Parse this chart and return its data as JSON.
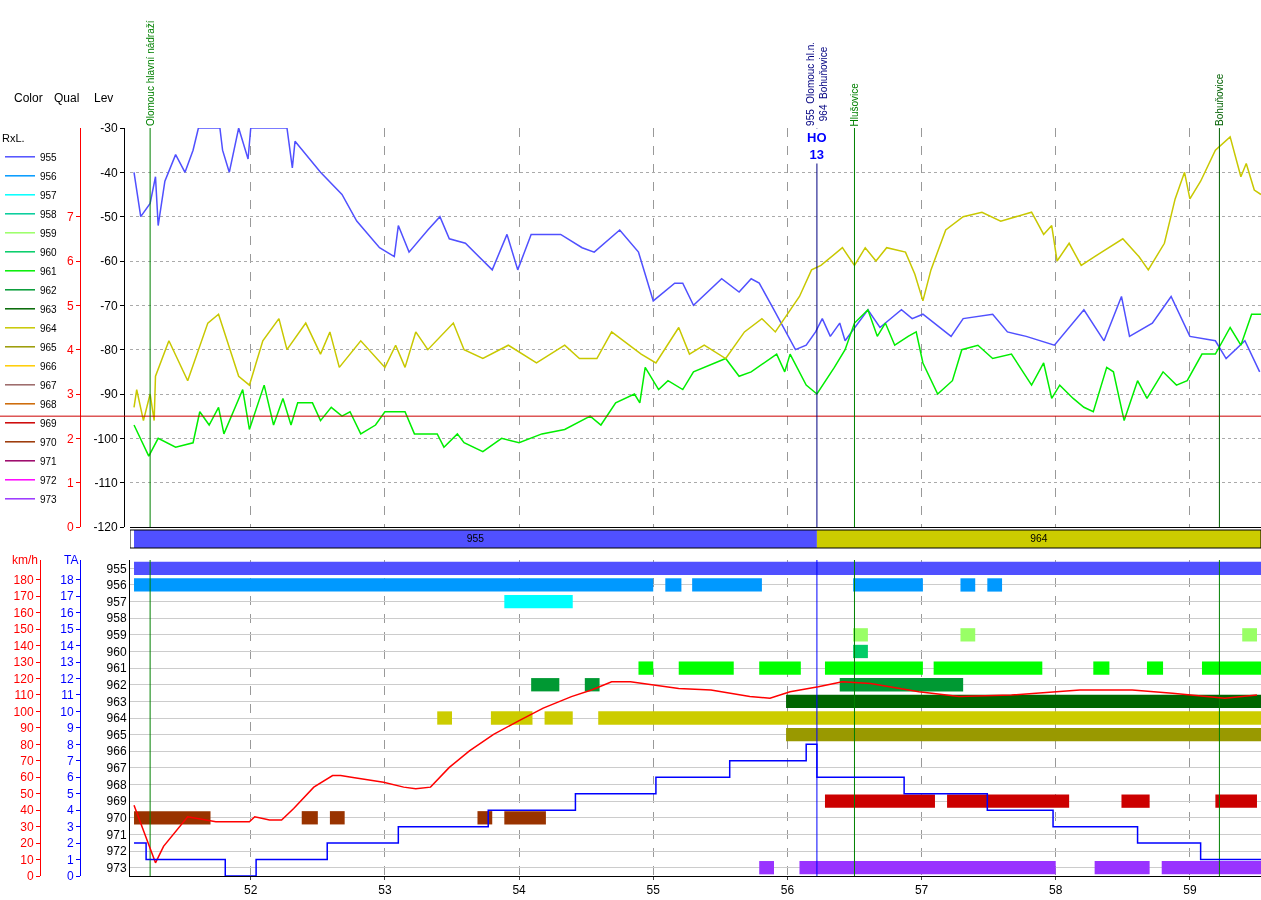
{
  "chart_data": [
    {
      "type": "line",
      "xlim": [
        51.1,
        59.53
      ],
      "xticks": [
        52,
        53,
        54,
        55,
        56,
        57,
        58,
        59
      ],
      "ylim": [
        -120,
        -30
      ],
      "yticks": [
        -120,
        -110,
        -100,
        -90,
        -80,
        -70,
        -60,
        -50,
        -40,
        -30
      ],
      "y2lim": [
        0,
        9
      ],
      "y2ticks": [
        0,
        1,
        2,
        3,
        4,
        5,
        6,
        7
      ],
      "tick_labels": "y",
      "grid": true,
      "legend": "left",
      "legend_title": "RxL.",
      "annotations": [
        "Color",
        "Qual",
        "Lev",
        {
          "text": "HO\n13",
          "x": 56.22,
          "y": -30
        }
      ],
      "ref_lines": [
        {
          "axis": "y",
          "value": -95,
          "color": "#cc0000"
        },
        {
          "axis": "x",
          "value": 51.25,
          "label": "Olomouc hlavní nádraží",
          "color": "#008000"
        },
        {
          "axis": "x",
          "value": 56.22,
          "label": "955  Olomouc hl.n.\n964  Bohuňovice",
          "color": "#000080"
        },
        {
          "axis": "x",
          "value": 56.5,
          "label": "Hlušovice",
          "color": "#008000"
        },
        {
          "axis": "x",
          "value": 59.22,
          "label": "Bohuňovice",
          "color": "#006000"
        }
      ],
      "series": [
        {
          "name": "955",
          "color": "#5050ff",
          "x": [
            51.13,
            51.18,
            51.25,
            51.29,
            51.31,
            51.36,
            51.44,
            51.51,
            51.57,
            51.61,
            51.77,
            51.79,
            51.84,
            51.91,
            51.98,
            52.0,
            52.27,
            52.31,
            52.33,
            52.52,
            52.68,
            52.79,
            52.96,
            53.07,
            53.1,
            53.18,
            53.32,
            53.41,
            53.48,
            53.6,
            53.8,
            53.91,
            53.99,
            54.09,
            54.31,
            54.47,
            54.56,
            54.75,
            54.89,
            54.94,
            55.0,
            55.16,
            55.22,
            55.3,
            55.51,
            55.64,
            55.73,
            55.79,
            55.9,
            56.06,
            56.14,
            56.21,
            56.26,
            56.32,
            56.39,
            56.43,
            56.6,
            56.69,
            56.85,
            56.93,
            57.01,
            57.22,
            57.31,
            57.53,
            57.64,
            57.78,
            57.99,
            58.21,
            58.36,
            58.49,
            58.55,
            58.72,
            58.86,
            59.0,
            59.19,
            59.27,
            59.41,
            59.52
          ],
          "values": [
            -40,
            -50,
            -47,
            -41,
            -52,
            -42,
            -36,
            -40,
            -35,
            -30,
            -30,
            -35,
            -40,
            -30,
            -37,
            -30,
            -30,
            -39,
            -33,
            -40,
            -45,
            -51,
            -57,
            -59,
            -52,
            -58,
            -53,
            -50,
            -55,
            -56,
            -62,
            -54,
            -62,
            -54,
            -54,
            -57,
            -58,
            -53,
            -58,
            -63,
            -69,
            -65,
            -65,
            -70,
            -64,
            -67,
            -64,
            -65,
            -71,
            -80,
            -79,
            -76,
            -73,
            -77,
            -74,
            -78,
            -71,
            -75,
            -71,
            -73,
            -72,
            -77,
            -73,
            -72,
            -76,
            -77,
            -79,
            -71,
            -78,
            -68,
            -77,
            -74,
            -68,
            -77,
            -78,
            -82,
            -78,
            -85
          ]
        },
        {
          "name": "956",
          "color": "#0099ff"
        },
        {
          "name": "957",
          "color": "#00ffff"
        },
        {
          "name": "958",
          "color": "#00cc99"
        },
        {
          "name": "959",
          "color": "#99ff66"
        },
        {
          "name": "960",
          "color": "#00cc66"
        },
        {
          "name": "961",
          "color": "#00ee00",
          "x": [
            51.13,
            51.24,
            51.31,
            51.44,
            51.57,
            51.62,
            51.69,
            51.76,
            51.8,
            51.94,
            51.99,
            52.1,
            52.17,
            52.24,
            52.3,
            52.35,
            52.46,
            52.52,
            52.6,
            52.68,
            52.74,
            52.82,
            52.93,
            53.0,
            53.15,
            53.22,
            53.39,
            53.44,
            53.54,
            53.59,
            53.73,
            53.87,
            54.0,
            54.17,
            54.34,
            54.53,
            54.61,
            54.72,
            54.86,
            54.9,
            54.94,
            55.04,
            55.11,
            55.22,
            55.3,
            55.54,
            55.64,
            55.73,
            55.92,
            55.98,
            56.02,
            56.14,
            56.22,
            56.35,
            56.43,
            56.5,
            56.6,
            56.67,
            56.73,
            56.8,
            56.9,
            56.96,
            57.01,
            57.12,
            57.23,
            57.3,
            57.42,
            57.53,
            57.67,
            57.82,
            57.91,
            57.97,
            58.03,
            58.13,
            58.21,
            58.28,
            58.38,
            58.43,
            58.51,
            58.61,
            58.68,
            58.8,
            58.9,
            58.98,
            59.09,
            59.19,
            59.3,
            59.38,
            59.46,
            59.53
          ],
          "values": [
            -97,
            -104,
            -100,
            -102,
            -101,
            -94,
            -97,
            -93,
            -99,
            -89,
            -98,
            -88,
            -97,
            -91,
            -97,
            -92,
            -92,
            -96,
            -93,
            -95,
            -94,
            -99,
            -97,
            -94,
            -94,
            -99,
            -99,
            -102,
            -99,
            -101,
            -103,
            -100,
            -101,
            -99,
            -98,
            -95,
            -97,
            -92,
            -90,
            -92,
            -84,
            -89,
            -87,
            -89,
            -85,
            -82,
            -86,
            -85,
            -81,
            -85,
            -81,
            -88,
            -90,
            -84,
            -80,
            -74,
            -71,
            -77,
            -74,
            -79,
            -77,
            -76,
            -83,
            -90,
            -87,
            -80,
            -79,
            -82,
            -81,
            -88,
            -83,
            -91,
            -88,
            -91,
            -93,
            -94,
            -84,
            -85,
            -96,
            -87,
            -91,
            -85,
            -88,
            -87,
            -81,
            -81,
            -75,
            -79,
            -72,
            -72
          ]
        },
        {
          "name": "962",
          "color": "#009933"
        },
        {
          "name": "963",
          "color": "#006600"
        },
        {
          "name": "964",
          "color": "#c8c800",
          "x": [
            51.13,
            51.15,
            51.2,
            51.25,
            51.28,
            51.29,
            51.39,
            51.53,
            51.68,
            51.76,
            51.91,
            51.99,
            52.09,
            52.21,
            52.27,
            52.41,
            52.52,
            52.59,
            52.66,
            52.82,
            53.0,
            53.08,
            53.15,
            53.23,
            53.32,
            53.51,
            53.59,
            53.73,
            53.92,
            54.13,
            54.34,
            54.45,
            54.58,
            54.69,
            54.91,
            55.02,
            55.19,
            55.27,
            55.38,
            55.54,
            55.68,
            55.81,
            55.91,
            56.09,
            56.18,
            56.25,
            56.41,
            56.5,
            56.58,
            56.66,
            56.74,
            56.88,
            56.95,
            57.01,
            57.07,
            57.18,
            57.31,
            57.45,
            57.59,
            57.82,
            57.91,
            57.97,
            58.01,
            58.1,
            58.19,
            58.29,
            58.5,
            58.62,
            58.69,
            58.81,
            58.89,
            58.96,
            59.0,
            59.08,
            59.19,
            59.3,
            59.38,
            59.42,
            59.48,
            59.53
          ],
          "values": [
            -93,
            -89,
            -96,
            -90,
            -96,
            -86,
            -78,
            -87,
            -74,
            -72,
            -86,
            -88,
            -78,
            -73,
            -80,
            -74,
            -81,
            -76,
            -84,
            -78,
            -84,
            -79,
            -84,
            -76,
            -80,
            -74,
            -80,
            -82,
            -79,
            -83,
            -79,
            -82,
            -82,
            -76,
            -81,
            -83,
            -75,
            -81,
            -79,
            -82,
            -76,
            -73,
            -76,
            -68,
            -62,
            -61,
            -57,
            -61,
            -57,
            -60,
            -57,
            -58,
            -63,
            -69,
            -62,
            -53,
            -50,
            -49,
            -51,
            -49,
            -54,
            -52,
            -60,
            -56,
            -61,
            -59,
            -55,
            -59,
            -62,
            -56,
            -46,
            -40,
            -46,
            -42,
            -35,
            -32,
            -41,
            -38,
            -44,
            -45
          ]
        },
        {
          "name": "965",
          "color": "#999900"
        },
        {
          "name": "966",
          "color": "#ffcc00"
        },
        {
          "name": "967",
          "color": "#996666"
        },
        {
          "name": "968",
          "color": "#cc6600"
        },
        {
          "name": "969",
          "color": "#cc0000"
        },
        {
          "name": "970",
          "color": "#993300"
        },
        {
          "name": "971",
          "color": "#990066"
        },
        {
          "name": "972",
          "color": "#ff00ff"
        },
        {
          "name": "973",
          "color": "#9933ff"
        }
      ]
    },
    {
      "type": "bar",
      "orientation": "horizontal",
      "categories": [
        null
      ],
      "xlim": [
        51.1,
        59.53
      ],
      "tick_labels": false,
      "series": [
        {
          "name": "955",
          "color": "#5050ff",
          "base": [
            51.13
          ],
          "values": [
            5.09
          ]
        },
        {
          "name": "964",
          "color": "#cccc00",
          "base": [
            56.22
          ],
          "values": [
            3.31
          ]
        }
      ]
    },
    {
      "type": "bar",
      "orientation": "horizontal",
      "categories": [
        "955",
        "956",
        "957",
        "958",
        "959",
        "960",
        "961",
        "962",
        "963",
        "964",
        "965",
        "966",
        "967",
        "968",
        "969",
        "970",
        "971",
        "972",
        "973"
      ],
      "xlim": [
        51.1,
        59.53
      ],
      "xticks": [
        52,
        53,
        54,
        55,
        56,
        57,
        58,
        59
      ],
      "grid": true,
      "ref_lines": [
        {
          "axis": "x",
          "value": 51.25,
          "color": "#008000"
        },
        {
          "axis": "x",
          "value": 56.22,
          "color": "#0000ff"
        },
        {
          "axis": "x",
          "value": 56.5,
          "color": "#008000"
        },
        {
          "axis": "x",
          "value": 59.22,
          "color": "#008000"
        }
      ],
      "series": [
        {
          "base": [
            51.13,
            51.13,
            53.89,
            null,
            56.49,
            56.49,
            54.89,
            54.09,
            55.99,
            53.39,
            55.99,
            null,
            null,
            null,
            56.28,
            51.13,
            null,
            null,
            55.79
          ],
          "values": [
            8.4,
            3.87,
            0.51,
            null,
            0.11,
            0.11,
            0.11,
            0.21,
            3.54,
            0.11,
            3.54,
            null,
            null,
            null,
            0.82,
            0.57,
            null,
            null,
            0.11
          ],
          "colors": [
            "#5050ff",
            "#0099ff",
            "#00ffff",
            null,
            "#99ff66",
            "#00cc66",
            "#00ff00",
            "#009933",
            "#006600",
            "#cccc00",
            "#999900",
            null,
            null,
            null,
            "#cc0000",
            "#993300",
            null,
            null,
            "#9933ff"
          ]
        },
        {
          "base": [
            null,
            55.09,
            null,
            null,
            57.29,
            null,
            55.19,
            54.49,
            null,
            53.79,
            null,
            null,
            null,
            null,
            57.19,
            52.38,
            null,
            null,
            56.09
          ],
          "values": [
            null,
            0.12,
            null,
            null,
            0.11,
            null,
            0.41,
            0.11,
            null,
            0.31,
            null,
            null,
            null,
            null,
            0.91,
            0.12,
            null,
            null,
            1.91
          ],
          "colors": [
            null,
            "#0099ff",
            null,
            null,
            "#99ff66",
            null,
            "#00ff00",
            "#009933",
            null,
            "#cccc00",
            null,
            null,
            null,
            null,
            "#cc0000",
            "#993300",
            null,
            null,
            "#9933ff"
          ]
        },
        {
          "base": [
            null,
            55.29,
            null,
            null,
            59.39,
            null,
            55.79,
            56.39,
            null,
            54.19,
            null,
            null,
            null,
            null,
            58.49,
            52.59,
            null,
            null,
            58.29
          ],
          "values": [
            null,
            0.52,
            null,
            null,
            0.11,
            null,
            0.31,
            0.92,
            null,
            0.21,
            null,
            null,
            null,
            null,
            0.21,
            0.11,
            null,
            null,
            0.41
          ],
          "colors": [
            null,
            "#0099ff",
            null,
            null,
            "#99ff66",
            null,
            "#00ff00",
            "#009933",
            null,
            "#cccc00",
            null,
            null,
            null,
            null,
            "#cc0000",
            "#993300",
            null,
            null,
            "#9933ff"
          ]
        },
        {
          "base": [
            null,
            56.49,
            null,
            null,
            null,
            null,
            56.28,
            null,
            null,
            54.59,
            null,
            null,
            null,
            null,
            59.19,
            53.69,
            null,
            null,
            58.79
          ],
          "values": [
            null,
            0.52,
            null,
            null,
            null,
            null,
            0.73,
            null,
            null,
            4.94,
            null,
            null,
            null,
            null,
            0.31,
            0.11,
            null,
            null,
            0.74
          ],
          "colors": [
            null,
            "#0099ff",
            null,
            null,
            null,
            null,
            "#00ff00",
            null,
            null,
            "#cccc00",
            null,
            null,
            null,
            null,
            "#cc0000",
            "#993300",
            null,
            null,
            "#9933ff"
          ]
        },
        {
          "base": [
            null,
            57.29,
            null,
            null,
            null,
            null,
            57.09,
            null,
            null,
            null,
            null,
            null,
            null,
            null,
            null,
            53.89,
            null,
            null,
            null
          ],
          "values": [
            null,
            0.11,
            null,
            null,
            null,
            null,
            0.81,
            null,
            null,
            null,
            null,
            null,
            null,
            null,
            null,
            0.31,
            null,
            null,
            null
          ],
          "colors": [
            null,
            "#0099ff",
            null,
            null,
            null,
            null,
            "#00ff00",
            null,
            null,
            null,
            null,
            null,
            null,
            null,
            null,
            "#993300",
            null,
            null,
            null
          ]
        },
        {
          "base": [
            null,
            57.49,
            null,
            null,
            null,
            null,
            58.28,
            null,
            null,
            null,
            null,
            null,
            null,
            null,
            null,
            null,
            null,
            null,
            null
          ],
          "values": [
            null,
            0.11,
            null,
            null,
            null,
            null,
            0.12,
            null,
            null,
            null,
            null,
            null,
            null,
            null,
            null,
            null,
            null,
            null,
            null
          ],
          "colors": [
            null,
            "#0099ff",
            null,
            null,
            null,
            null,
            "#00ff00",
            null,
            null,
            null,
            null,
            null,
            null,
            null,
            null,
            null,
            null,
            null,
            null
          ]
        },
        {
          "base": [
            null,
            null,
            null,
            null,
            null,
            null,
            58.68,
            null,
            null,
            null,
            null,
            null,
            null,
            null,
            null,
            null,
            null,
            null,
            null
          ],
          "values": [
            null,
            null,
            null,
            null,
            null,
            null,
            0.12,
            null,
            null,
            null,
            null,
            null,
            null,
            null,
            null,
            null,
            null,
            null,
            null
          ],
          "colors": [
            null,
            null,
            null,
            null,
            null,
            null,
            "#00ff00",
            null,
            null,
            null,
            null,
            null,
            null,
            null,
            null,
            null,
            null,
            null,
            null
          ]
        },
        {
          "base": [
            null,
            null,
            null,
            null,
            null,
            null,
            59.09,
            null,
            null,
            null,
            null,
            null,
            null,
            null,
            null,
            null,
            null,
            null,
            null
          ],
          "values": [
            null,
            null,
            null,
            null,
            null,
            null,
            0.44,
            null,
            null,
            null,
            null,
            null,
            null,
            null,
            null,
            null,
            null,
            null,
            null
          ],
          "colors": [
            null,
            null,
            null,
            null,
            null,
            null,
            "#00ff00",
            null,
            null,
            null,
            null,
            null,
            null,
            null,
            null,
            null,
            null,
            null,
            null
          ]
        }
      ]
    },
    {
      "type": "line",
      "xlim": [
        51.1,
        59.53
      ],
      "tick_labels": "y",
      "ylabel": "km/h",
      "ylim": [
        0,
        192
      ],
      "yticks": [
        0,
        10,
        20,
        30,
        40,
        50,
        60,
        70,
        80,
        90,
        100,
        110,
        120,
        130,
        140,
        150,
        160,
        170,
        180
      ],
      "y2label": "TA",
      "y2lim": [
        0,
        19.2
      ],
      "y2ticks": [
        0,
        1,
        2,
        3,
        4,
        5,
        6,
        7,
        8,
        9,
        10,
        11,
        12,
        13,
        14,
        15,
        16,
        17,
        18
      ],
      "series": [
        {
          "color": "#ff0000",
          "x": [
            51.13,
            51.29,
            51.35,
            51.53,
            51.74,
            51.99,
            52.03,
            52.14,
            52.23,
            52.32,
            52.47,
            52.61,
            52.67,
            52.75,
            52.99,
            53.14,
            53.23,
            53.34,
            53.48,
            53.63,
            53.81,
            53.99,
            54.18,
            54.39,
            54.54,
            54.69,
            54.83,
            55.19,
            55.43,
            55.72,
            55.87,
            56.02,
            56.23,
            56.41,
            56.62,
            56.98,
            57.28,
            57.67,
            58.18,
            58.57,
            58.87,
            59.26,
            59.5
          ],
          "values": [
            43,
            8,
            18,
            36,
            33,
            33,
            36,
            34,
            34,
            41,
            54,
            61,
            61,
            60,
            57,
            54,
            53,
            54,
            66,
            76,
            86,
            94,
            102,
            109,
            113,
            118,
            118,
            114,
            113,
            109,
            108,
            112,
            115,
            118,
            117,
            112,
            109,
            110,
            113,
            113,
            111,
            108,
            110
          ]
        },
        {
          "type": "step",
          "axis": "y2",
          "color": "#0000ff",
          "x": [
            51.13,
            51.22,
            51.81,
            52.04,
            52.57,
            53.1,
            53.77,
            54.42,
            55.02,
            55.57,
            56.14,
            56.22,
            56.87,
            57.49,
            57.98,
            58.61,
            59.08,
            59.53
          ],
          "values": [
            2,
            1,
            0,
            1,
            2,
            3,
            4,
            5,
            6,
            7,
            8,
            6,
            5,
            4,
            3,
            2,
            1,
            1
          ]
        }
      ]
    }
  ]
}
